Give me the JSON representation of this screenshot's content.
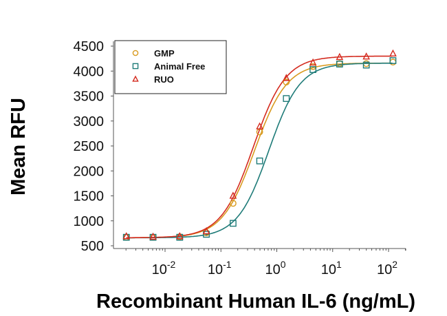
{
  "chart_data": {
    "type": "scatter",
    "title": "",
    "xlabel": "Recombinant Human IL-6 (ng/mL)",
    "ylabel": "Mean RFU",
    "xscale": "log",
    "xlim": [
      0.0012,
      200
    ],
    "ylim": [
      500,
      4500
    ],
    "yticks": [
      500,
      1000,
      1500,
      2000,
      2500,
      3000,
      3500,
      4000,
      4500
    ],
    "xticks": [
      {
        "value": 0.01,
        "base": "10",
        "exp": "-2"
      },
      {
        "value": 0.1,
        "base": "10",
        "exp": "-1"
      },
      {
        "value": 1,
        "base": "10",
        "exp": "0"
      },
      {
        "value": 10,
        "base": "10",
        "exp": "1"
      },
      {
        "value": 100,
        "base": "10",
        "exp": "2"
      }
    ],
    "grid": false,
    "legend_position": "top-left",
    "x": [
      0.00203,
      0.0061,
      0.0183,
      0.0549,
      0.165,
      0.494,
      1.48,
      4.44,
      13.3,
      40,
      120
    ],
    "series": [
      {
        "name": "GMP",
        "marker": "circle",
        "color": "#d89a1e",
        "values": [
          670,
          670,
          680,
          760,
          1350,
          2780,
          3780,
          4090,
          4150,
          4150,
          4180
        ],
        "fit": {
          "bottom": 660,
          "top": 4160,
          "ec50": 0.4,
          "hill": 1.5
        }
      },
      {
        "name": "Animal Free",
        "marker": "square",
        "color": "#1e7b78",
        "values": [
          670,
          670,
          670,
          730,
          950,
          2200,
          3450,
          4030,
          4140,
          4120,
          4210
        ],
        "fit": {
          "bottom": 660,
          "top": 4160,
          "ec50": 0.72,
          "hill": 1.55
        }
      },
      {
        "name": "RUO",
        "marker": "triangle",
        "color": "#d42a1e",
        "values": [
          690,
          680,
          690,
          790,
          1500,
          2890,
          3860,
          4170,
          4280,
          4290,
          4350
        ],
        "fit": {
          "bottom": 660,
          "top": 4300,
          "ec50": 0.38,
          "hill": 1.5
        }
      }
    ]
  }
}
